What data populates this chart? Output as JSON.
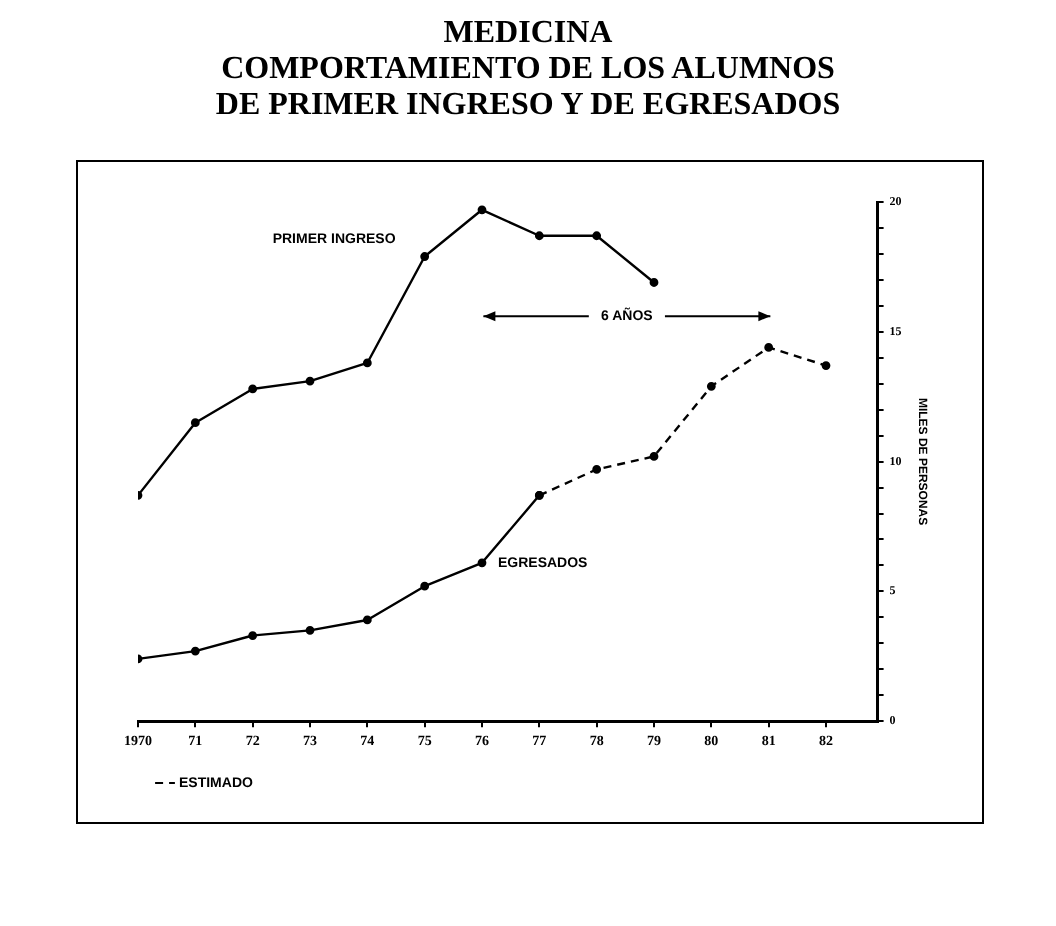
{
  "chart_data": {
    "type": "line",
    "title": "MEDICINA\nCOMPORTAMIENTO DE LOS ALUMNOS\nDE PRIMER INGRESO Y DE EGRESADOS",
    "ylabel": "MILES DE PERSONAS",
    "x": [
      1970,
      1971,
      1972,
      1973,
      1974,
      1975,
      1976,
      1977,
      1978,
      1979,
      1980,
      1981,
      1982
    ],
    "series": [
      {
        "name": "PRIMER INGRESO",
        "color": "#000000",
        "values": [
          8.7,
          11.5,
          12.8,
          13.1,
          13.8,
          17.9,
          19.7,
          18.7,
          18.7,
          16.9,
          null,
          null,
          null
        ]
      },
      {
        "name": "EGRESADOS",
        "color": "#000000",
        "values": [
          2.4,
          2.7,
          3.3,
          3.5,
          3.9,
          5.2,
          6.1,
          8.7,
          null,
          null,
          null,
          null,
          null
        ]
      },
      {
        "name": "ESTIMADO",
        "color": "#000000",
        "line_style": "dashed",
        "values": [
          null,
          null,
          null,
          null,
          null,
          null,
          null,
          8.7,
          9.7,
          10.2,
          12.9,
          14.4,
          13.7
        ]
      }
    ],
    "annotations": [
      "6 AÑOS"
    ],
    "xlim": [
      1970,
      1982.9
    ],
    "xticks": [
      {
        "value": 1970,
        "label": "1970"
      },
      {
        "value": 1971,
        "label": "71"
      },
      {
        "value": 1972,
        "label": "72"
      },
      {
        "value": 1973,
        "label": "73"
      },
      {
        "value": 1974,
        "label": "74"
      },
      {
        "value": 1975,
        "label": "75"
      },
      {
        "value": 1976,
        "label": "76"
      },
      {
        "value": 1977,
        "label": "77"
      },
      {
        "value": 1978,
        "label": "78"
      },
      {
        "value": 1979,
        "label": "79"
      },
      {
        "value": 1980,
        "label": "80"
      },
      {
        "value": 1981,
        "label": "81"
      },
      {
        "value": 1982,
        "label": "82"
      }
    ],
    "ylim": [
      0,
      20
    ],
    "yticks": [
      0,
      {
        "value": 1,
        "label": null
      },
      {
        "value": 2,
        "label": null
      },
      {
        "value": 3,
        "label": null
      },
      {
        "value": 4,
        "label": null
      },
      5,
      {
        "value": 6,
        "label": null
      },
      {
        "value": 7,
        "label": null
      },
      {
        "value": 8,
        "label": null
      },
      {
        "value": 9,
        "label": null
      },
      10,
      {
        "value": 11,
        "label": null
      },
      {
        "value": 12,
        "label": null
      },
      {
        "value": 13,
        "label": null
      },
      {
        "value": 14,
        "label": null
      },
      15,
      {
        "value": 16,
        "label": null
      },
      {
        "value": 17,
        "label": null
      },
      {
        "value": 18,
        "label": null
      },
      {
        "value": 19,
        "label": null
      },
      20
    ],
    "grid": false,
    "legend": "bottom left",
    "marker": "circle",
    "line_style": "solid"
  }
}
